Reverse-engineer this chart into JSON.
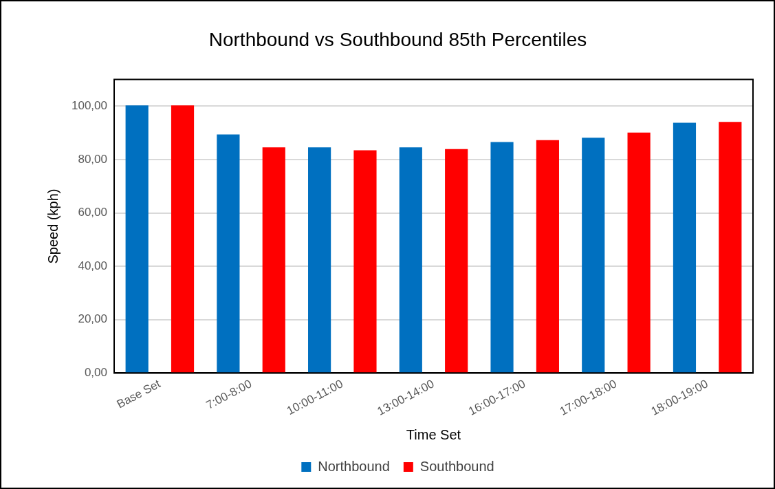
{
  "chart_data": {
    "type": "bar",
    "title": "Northbound vs Southbound 85th Percentiles",
    "xlabel": "Time Set",
    "ylabel": "Speed (kph)",
    "categories": [
      "Base Set",
      "7:00-8:00",
      "10:00-11:00",
      "13:00-14:00",
      "16:00-17:00",
      "17:00-18:00",
      "18:00-19:00"
    ],
    "series": [
      {
        "name": "Northbound",
        "color": "#0070c0",
        "values": [
          100.3,
          89.4,
          84.6,
          84.6,
          86.6,
          88.2,
          93.8
        ]
      },
      {
        "name": "Southbound",
        "color": "#ff0000",
        "values": [
          100.3,
          84.6,
          83.5,
          83.9,
          87.3,
          90.1,
          94.1
        ]
      }
    ],
    "ylim": [
      0,
      110
    ],
    "yticks": [
      {
        "value": 0,
        "label": "0,00"
      },
      {
        "value": 20,
        "label": "20,00"
      },
      {
        "value": 40,
        "label": "40,00"
      },
      {
        "value": 60,
        "label": "60,00"
      },
      {
        "value": 80,
        "label": "80,00"
      },
      {
        "value": 100,
        "label": "100,00"
      }
    ],
    "grid": "y",
    "legend": "bottom"
  }
}
